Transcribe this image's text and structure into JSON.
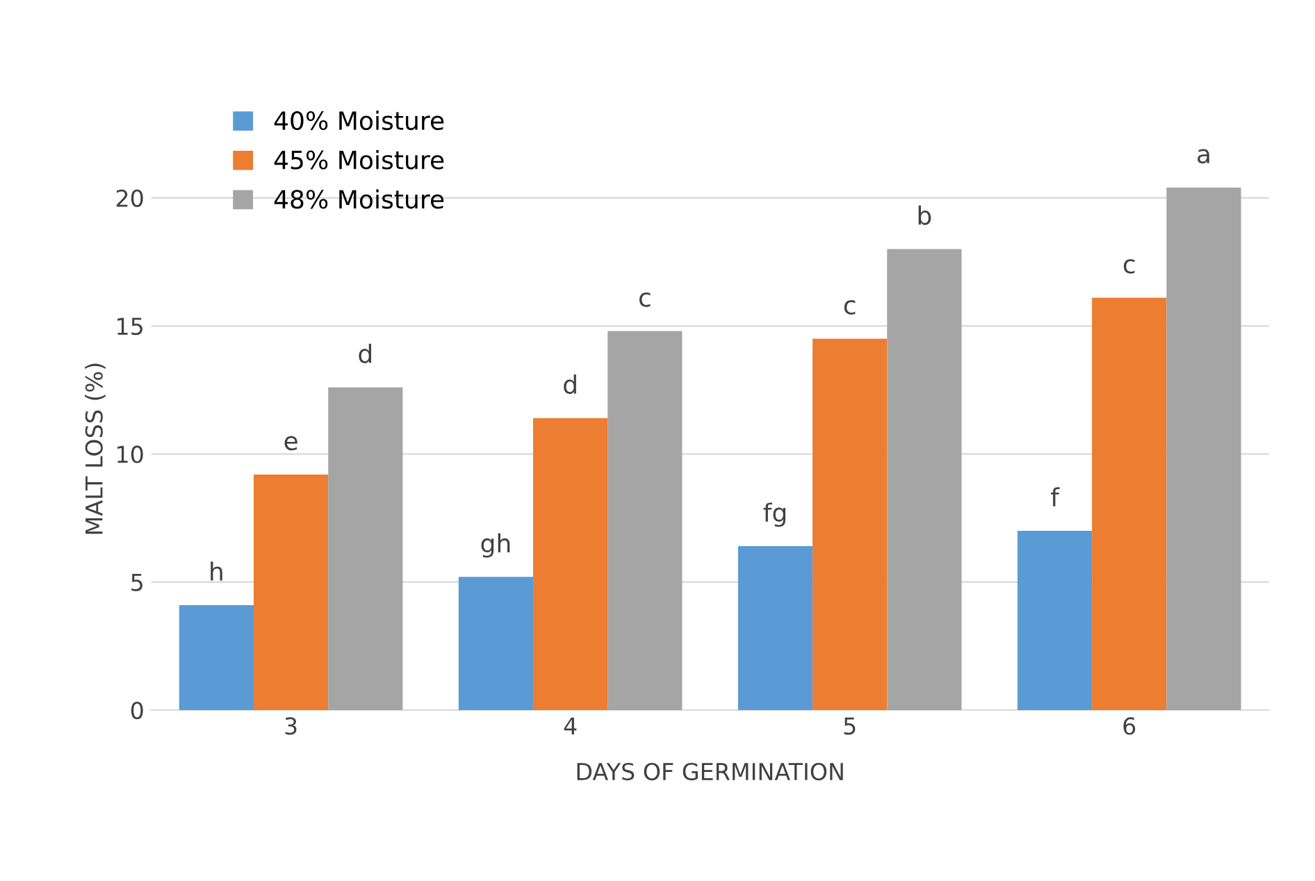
{
  "chart_data": {
    "type": "bar",
    "xlabel": "DAYS OF GERMINATION",
    "ylabel": "MALT LOSS (%)",
    "categories": [
      "3",
      "4",
      "5",
      "6"
    ],
    "series": [
      {
        "name": "40% Moisture",
        "color": "#5b9bd5",
        "values": [
          4.1,
          5.2,
          6.4,
          7.0
        ],
        "value_labels": [
          "h",
          "gh",
          "fg",
          "f"
        ]
      },
      {
        "name": "45% Moisture",
        "color": "#ed7d31",
        "values": [
          9.2,
          11.4,
          14.5,
          16.1
        ],
        "value_labels": [
          "e",
          "d",
          "c",
          "c"
        ]
      },
      {
        "name": "48% Moisture",
        "color": "#a5a5a5",
        "values": [
          12.6,
          14.8,
          18.0,
          20.4
        ],
        "value_labels": [
          "d",
          "c",
          "b",
          "a"
        ]
      }
    ],
    "ylim": [
      0,
      20.4
    ],
    "yticks": [
      0,
      5,
      10,
      15,
      20
    ],
    "grid": "y",
    "legend": "top left"
  }
}
